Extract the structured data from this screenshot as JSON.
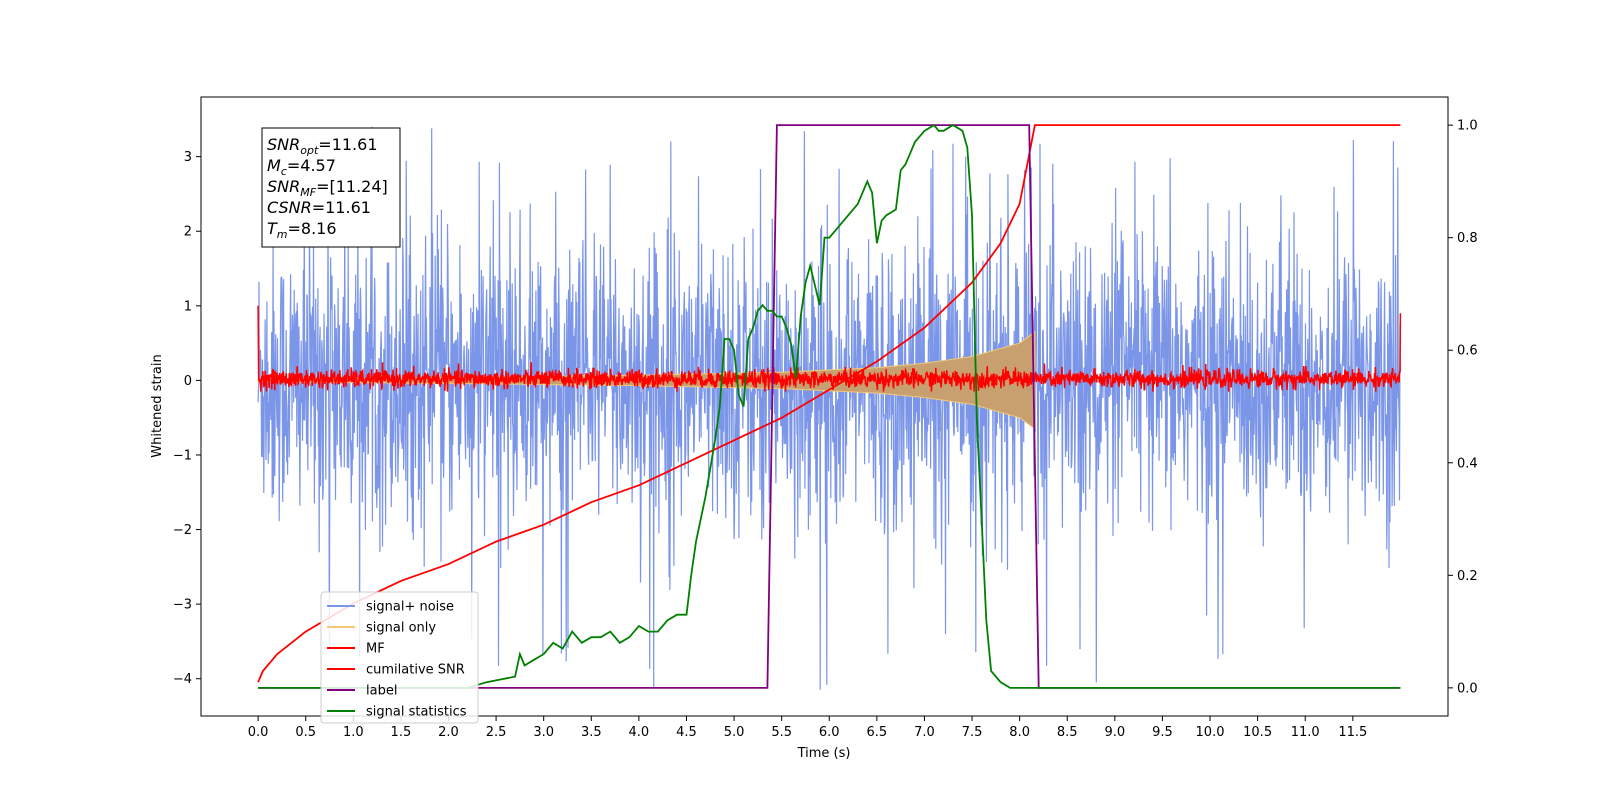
{
  "chart_data": {
    "type": "line",
    "xlabel": "Time (s)",
    "ylabel": "Whitened strain",
    "xlim": [
      -0.6,
      12.5
    ],
    "ylim": [
      -4.5,
      3.8
    ],
    "y2lim": [
      -0.05,
      1.05
    ],
    "xticks": [
      0.0,
      0.5,
      1.0,
      1.5,
      2.0,
      2.5,
      3.0,
      3.5,
      4.0,
      4.5,
      5.0,
      5.5,
      6.0,
      6.5,
      7.0,
      7.5,
      8.0,
      8.5,
      9.0,
      9.5,
      10.0,
      10.5,
      11.0,
      11.5
    ],
    "xtick_labels": [
      "0.0",
      "0.5",
      "1.0",
      "1.5",
      "2.0",
      "2.5",
      "3.0",
      "3.5",
      "4.0",
      "4.5",
      "5.0",
      "5.5",
      "6.0",
      "6.5",
      "7.0",
      "7.5",
      "8.0",
      "8.5",
      "9.0",
      "9.5",
      "10.0",
      "10.5",
      "11.0",
      "11.5"
    ],
    "yticks": [
      -4,
      -3,
      -2,
      -1,
      0,
      1,
      2,
      3
    ],
    "ytick_labels": [
      "−4",
      "−3",
      "−2",
      "−1",
      "0",
      "1",
      "2",
      "3"
    ],
    "y2ticks": [
      0.0,
      0.2,
      0.4,
      0.6,
      0.8,
      1.0
    ],
    "y2tick_labels": [
      "0.0",
      "0.2",
      "0.4",
      "0.6",
      "0.8",
      "1.0"
    ],
    "grid": false,
    "legend_position": "lower-left",
    "info_box": [
      {
        "main": "SNR",
        "sub": "opt",
        "rest": "=11.61"
      },
      {
        "main": "M",
        "sub": "c",
        "rest": "=4.57"
      },
      {
        "main": "SNR",
        "sub": "MF",
        "rest": "=[11.24]"
      },
      {
        "main": "CSNR",
        "sub": "",
        "rest": "=11.61"
      },
      {
        "main": "T",
        "sub": "m",
        "rest": "=8.16"
      }
    ],
    "series": [
      {
        "name": "signal+ noise",
        "axis": "left",
        "color": "#7b96e8",
        "style": "noise band",
        "x_range": [
          0.0,
          12.0
        ],
        "envelope_typical": [
          -1.6,
          1.6
        ],
        "envelope_peaks": [
          -4.15,
          3.4
        ]
      },
      {
        "name": "signal only",
        "axis": "left",
        "color": "#f2c878",
        "style": "chirp",
        "x_range": [
          0.0,
          8.16
        ],
        "amplitude": {
          "x": [
            0.0,
            2.0,
            4.0,
            5.5,
            6.5,
            7.0,
            7.5,
            8.0,
            8.16
          ],
          "y": [
            0.02,
            0.04,
            0.07,
            0.11,
            0.17,
            0.23,
            0.32,
            0.5,
            0.65
          ]
        }
      },
      {
        "name": "MF",
        "axis": "left",
        "color": "#ff0000",
        "style": "noise band",
        "x_range": [
          0.0,
          12.0
        ],
        "envelope_typical": [
          -0.1,
          0.15
        ],
        "envelope_peaks": [
          -0.15,
          0.33
        ],
        "edge_spikes": {
          "x": [
            0.0,
            12.0
          ],
          "y": [
            1.0,
            0.9
          ]
        }
      },
      {
        "name": "cumilative SNR",
        "axis": "right",
        "color": "#ff0000",
        "x": [
          0.0,
          0.05,
          0.2,
          0.5,
          1.0,
          1.5,
          2.0,
          2.5,
          3.0,
          3.5,
          4.0,
          4.5,
          5.0,
          5.5,
          6.0,
          6.5,
          7.0,
          7.5,
          7.8,
          8.0,
          8.16,
          9.0,
          10.0,
          11.0,
          12.0
        ],
        "y": [
          0.01,
          0.03,
          0.06,
          0.1,
          0.15,
          0.19,
          0.22,
          0.26,
          0.29,
          0.33,
          0.36,
          0.4,
          0.44,
          0.48,
          0.53,
          0.58,
          0.64,
          0.72,
          0.79,
          0.86,
          1.0,
          1.0,
          1.0,
          1.0,
          1.0
        ]
      },
      {
        "name": "label",
        "axis": "right",
        "color": "#800080",
        "x": [
          0.0,
          5.35,
          5.45,
          8.1,
          8.2,
          12.0
        ],
        "y": [
          0.0,
          0.0,
          1.0,
          1.0,
          0.0,
          0.0
        ]
      },
      {
        "name": "signal statistics",
        "axis": "right",
        "color": "#008000",
        "x": [
          0.0,
          2.2,
          2.4,
          2.7,
          2.75,
          2.8,
          2.9,
          3.0,
          3.1,
          3.2,
          3.3,
          3.4,
          3.5,
          3.6,
          3.7,
          3.8,
          3.9,
          4.0,
          4.1,
          4.2,
          4.3,
          4.4,
          4.5,
          4.55,
          4.6,
          4.7,
          4.8,
          4.85,
          4.9,
          4.95,
          5.0,
          5.05,
          5.1,
          5.15,
          5.2,
          5.25,
          5.3,
          5.35,
          5.4,
          5.45,
          5.5,
          5.55,
          5.6,
          5.65,
          5.7,
          5.75,
          5.8,
          5.9,
          5.95,
          6.0,
          6.1,
          6.2,
          6.3,
          6.4,
          6.45,
          6.5,
          6.55,
          6.6,
          6.7,
          6.75,
          6.8,
          6.85,
          6.9,
          7.0,
          7.1,
          7.15,
          7.2,
          7.3,
          7.4,
          7.45,
          7.5,
          7.55,
          7.6,
          7.65,
          7.7,
          7.8,
          7.9,
          8.0,
          8.5,
          11.0,
          12.0
        ],
        "y": [
          0.0,
          0.0,
          0.01,
          0.02,
          0.06,
          0.04,
          0.05,
          0.06,
          0.08,
          0.07,
          0.1,
          0.08,
          0.09,
          0.09,
          0.1,
          0.08,
          0.09,
          0.11,
          0.1,
          0.1,
          0.12,
          0.13,
          0.13,
          0.2,
          0.26,
          0.34,
          0.44,
          0.5,
          0.62,
          0.62,
          0.6,
          0.52,
          0.5,
          0.62,
          0.64,
          0.67,
          0.68,
          0.67,
          0.67,
          0.66,
          0.66,
          0.64,
          0.61,
          0.55,
          0.66,
          0.72,
          0.75,
          0.68,
          0.8,
          0.8,
          0.82,
          0.84,
          0.86,
          0.9,
          0.88,
          0.79,
          0.83,
          0.84,
          0.85,
          0.92,
          0.93,
          0.95,
          0.97,
          0.99,
          1.0,
          0.99,
          0.99,
          1.0,
          0.99,
          0.96,
          0.84,
          0.48,
          0.3,
          0.12,
          0.03,
          0.01,
          0.0,
          0.0,
          0.0,
          0.0,
          0.0
        ]
      }
    ]
  }
}
